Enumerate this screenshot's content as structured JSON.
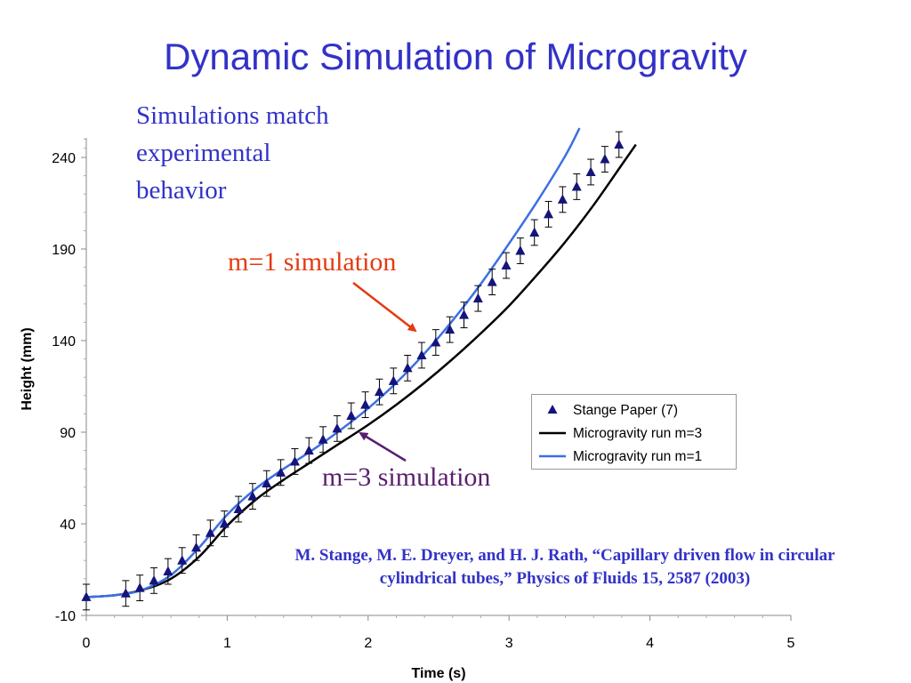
{
  "slide": {
    "title": "Dynamic Simulation of Microgravity",
    "note_lines": [
      "Simulations match",
      "experimental",
      "behavior"
    ],
    "annotation_m1": "m=1 simulation",
    "annotation_m3": "m=3 simulation",
    "citation_lines": [
      "M. Stange, M. E. Dreyer, and H. J. Rath, “Capillary driven flow in circular",
      "cylindrical tubes,” Physics of Fluids 15, 2587 (2003)"
    ],
    "colors": {
      "title": "#3232c8",
      "m1_annotation": "#e43b12",
      "m3_annotation": "#5a1e6e"
    }
  },
  "chart_data": {
    "type": "scatter",
    "xlabel": "Time (s)",
    "ylabel": "Height (mm)",
    "xlim": [
      0,
      5
    ],
    "ylim": [
      -10,
      250
    ],
    "x_ticks": [
      0,
      1,
      2,
      3,
      4,
      5
    ],
    "y_ticks": [
      -10,
      40,
      90,
      140,
      190,
      240
    ],
    "x_tick_labels": [
      "0",
      "1",
      "2",
      "3",
      "4",
      "5"
    ],
    "y_tick_labels": [
      "-10",
      "40",
      "90",
      "140",
      "190",
      "240"
    ],
    "legend": {
      "position": "right"
    },
    "series": [
      {
        "name": "Stange Paper (7)",
        "kind": "points_with_errorbars",
        "color": "#14147a",
        "x": [
          0.0,
          0.28,
          0.38,
          0.48,
          0.58,
          0.68,
          0.78,
          0.88,
          0.98,
          1.08,
          1.18,
          1.28,
          1.38,
          1.48,
          1.58,
          1.68,
          1.78,
          1.88,
          1.98,
          2.08,
          2.18,
          2.28,
          2.38,
          2.48,
          2.58,
          2.68,
          2.78,
          2.88,
          2.98,
          3.08,
          3.18,
          3.28,
          3.38,
          3.48,
          3.58,
          3.68,
          3.78
        ],
        "y": [
          0,
          2,
          5,
          9,
          14,
          20,
          27,
          35,
          40,
          48,
          55,
          62,
          68,
          74,
          80,
          86,
          92,
          99,
          105,
          112,
          118,
          125,
          132,
          139,
          146,
          154,
          163,
          172,
          181,
          189,
          199,
          209,
          217,
          224,
          232,
          239,
          247
        ],
        "error": 7
      },
      {
        "name": "Microgravity run m=3",
        "kind": "line",
        "color": "#000000",
        "x": [
          0.0,
          0.2,
          0.4,
          0.6,
          0.8,
          1.0,
          1.2,
          1.4,
          1.6,
          1.8,
          2.0,
          2.2,
          2.4,
          2.6,
          2.8,
          3.0,
          3.2,
          3.4,
          3.6,
          3.8,
          3.9
        ],
        "y": [
          0,
          1,
          4,
          10,
          22,
          39,
          53,
          64,
          74,
          84,
          94,
          105,
          117,
          130,
          144,
          159,
          176,
          194,
          214,
          236,
          247
        ]
      },
      {
        "name": "Microgravity run m=1",
        "kind": "line",
        "color": "#3c6ee6",
        "x": [
          0.0,
          0.2,
          0.4,
          0.6,
          0.8,
          1.0,
          1.2,
          1.4,
          1.6,
          1.8,
          2.0,
          2.2,
          2.4,
          2.6,
          2.8,
          3.0,
          3.2,
          3.4,
          3.5
        ],
        "y": [
          0,
          1,
          4,
          12,
          27,
          45,
          59,
          70,
          80,
          91,
          103,
          117,
          133,
          151,
          171,
          193,
          216,
          241,
          256
        ]
      }
    ]
  }
}
